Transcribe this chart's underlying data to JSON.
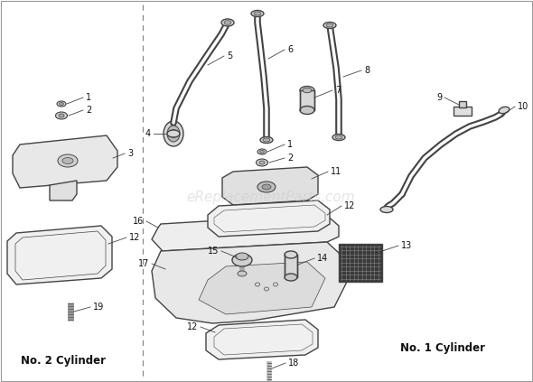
{
  "background_color": "#ffffff",
  "line_color": "#444444",
  "text_color": "#111111",
  "watermark_text": "eReplacementParts.com",
  "watermark_color": "#cccccc",
  "watermark_alpha": 0.5,
  "label_no2": "No. 2 Cylinder",
  "label_no1": "No. 1 Cylinder",
  "fig_width": 5.9,
  "fig_height": 4.23,
  "dpi": 100
}
